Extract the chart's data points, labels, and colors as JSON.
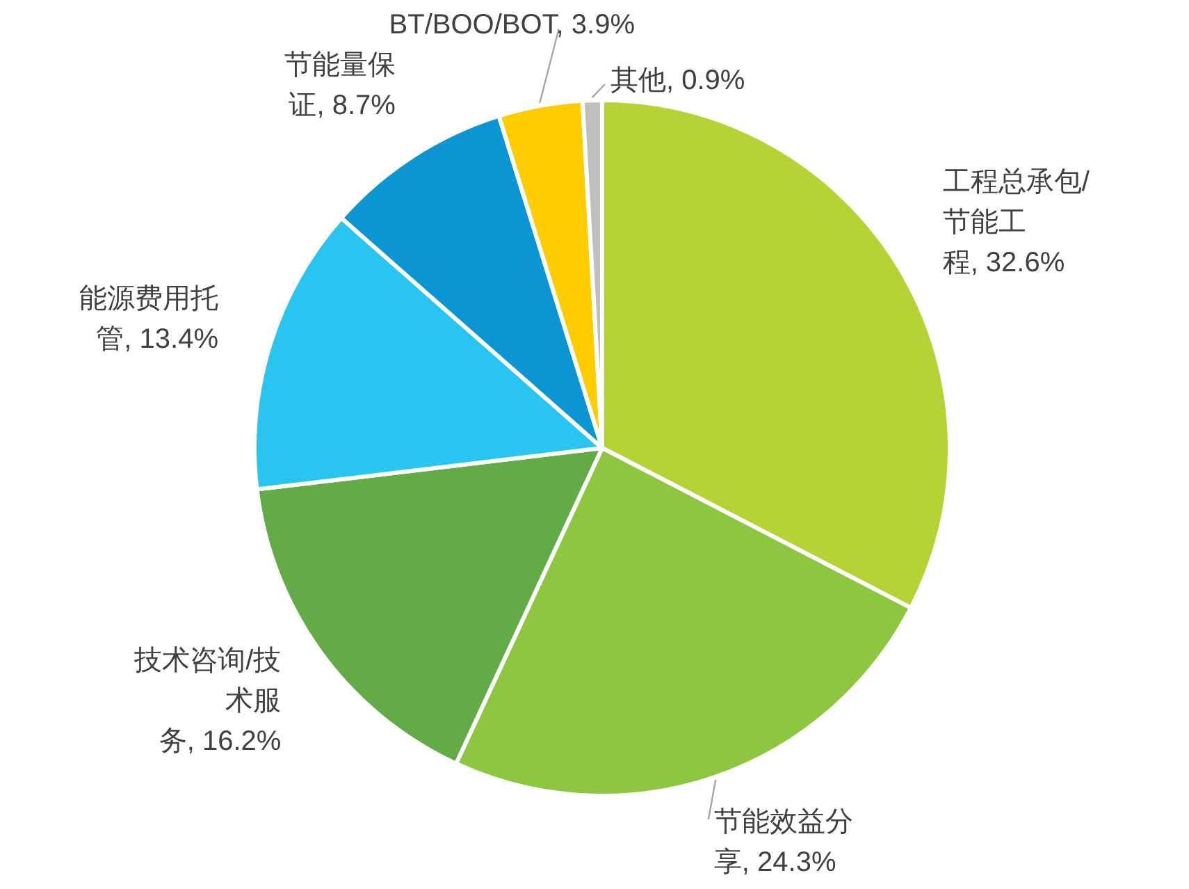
{
  "chart_data": {
    "type": "pie",
    "categories": [
      "工程总承包/节能工程",
      "节能效益分享",
      "技术咨询/技术服务",
      "能源费用托管",
      "节能量保证",
      "BT/BOO/BOT",
      "其他"
    ],
    "values": [
      32.6,
      24.3,
      16.2,
      13.4,
      8.7,
      3.9,
      0.9
    ],
    "value_labels": [
      "32.6%",
      "24.3%",
      "16.2%",
      "13.4%",
      "8.7%",
      "3.9%",
      "0.9%"
    ],
    "colors": [
      "#b5d334",
      "#8dc63f",
      "#62ab46",
      "#29c5f0",
      "#0b96d3",
      "#ffcc00",
      "#bfbfbf"
    ]
  }
}
